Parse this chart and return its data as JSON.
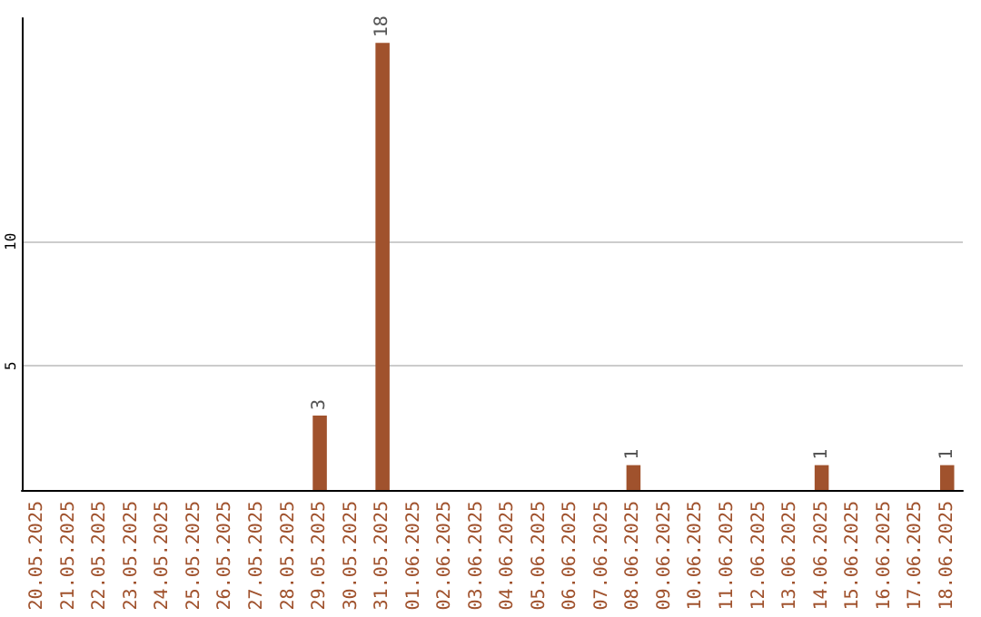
{
  "chart_data": {
    "type": "bar",
    "categories": [
      "20.05.2025",
      "21.05.2025",
      "22.05.2025",
      "23.05.2025",
      "24.05.2025",
      "25.05.2025",
      "26.05.2025",
      "27.05.2025",
      "28.05.2025",
      "29.05.2025",
      "30.05.2025",
      "31.05.2025",
      "01.06.2025",
      "02.06.2025",
      "03.06.2025",
      "04.06.2025",
      "05.06.2025",
      "06.06.2025",
      "07.06.2025",
      "08.06.2025",
      "09.06.2025",
      "10.06.2025",
      "11.06.2025",
      "12.06.2025",
      "13.06.2025",
      "14.06.2025",
      "15.06.2025",
      "16.06.2025",
      "17.06.2025",
      "18.06.2025"
    ],
    "values": [
      0,
      0,
      0,
      0,
      0,
      0,
      0,
      0,
      0,
      3,
      0,
      18,
      0,
      0,
      0,
      0,
      0,
      0,
      0,
      1,
      0,
      0,
      0,
      0,
      0,
      1,
      0,
      0,
      0,
      1
    ],
    "value_labels": [
      null,
      null,
      null,
      null,
      null,
      null,
      null,
      null,
      null,
      "3",
      null,
      "18",
      null,
      null,
      null,
      null,
      null,
      null,
      null,
      "1",
      null,
      null,
      null,
      null,
      null,
      "1",
      null,
      null,
      null,
      "1"
    ],
    "color": "#a0522d",
    "ylim": [
      0,
      19
    ],
    "yticks": [
      5,
      10
    ],
    "grid": "y"
  }
}
